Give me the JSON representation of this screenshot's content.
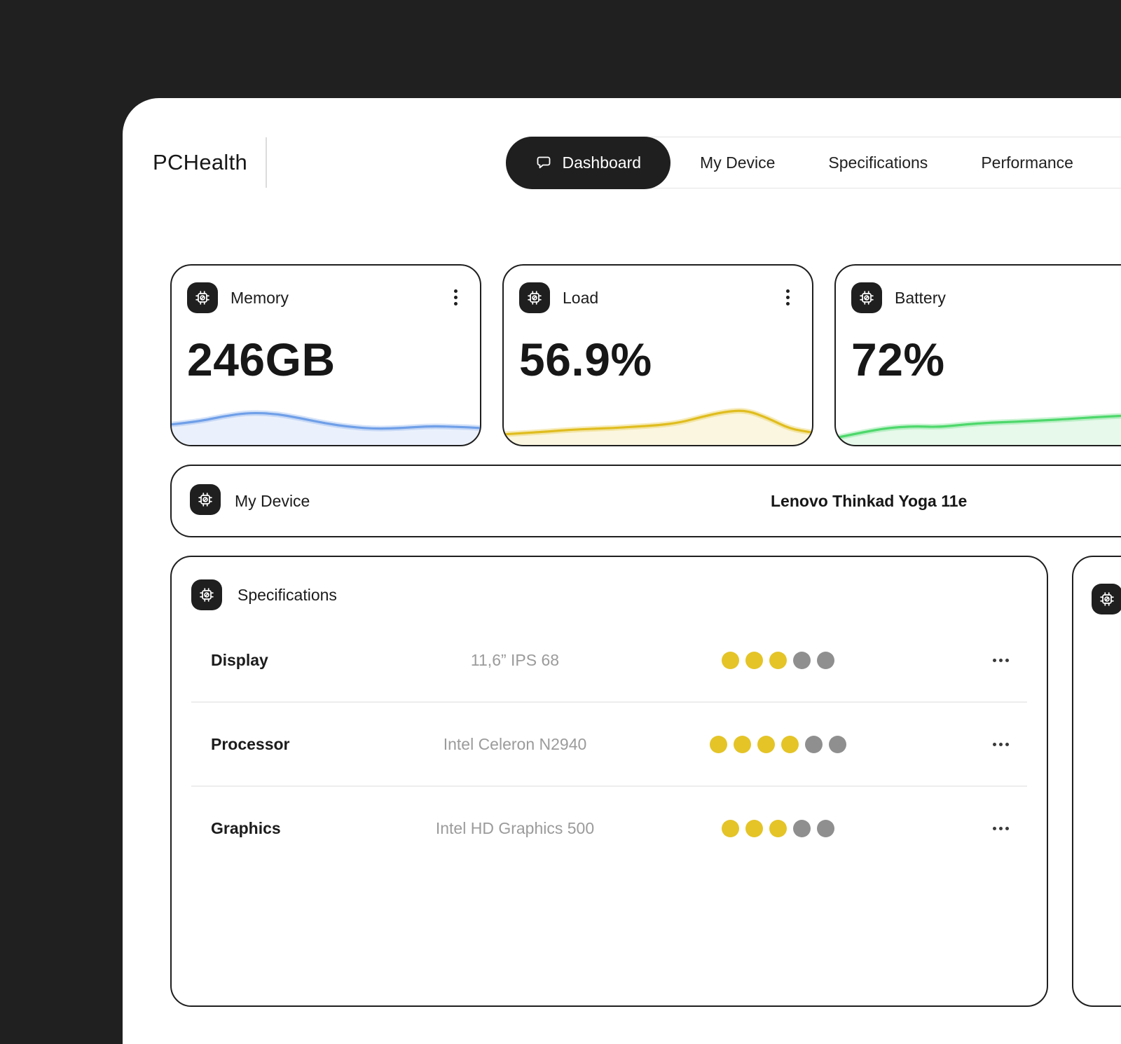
{
  "app": {
    "name": "PCHealth"
  },
  "nav": {
    "items": [
      {
        "label": "Dashboard",
        "active": true
      },
      {
        "label": "My Device",
        "active": false
      },
      {
        "label": "Specifications",
        "active": false
      },
      {
        "label": "Performance",
        "active": false
      }
    ]
  },
  "stats": [
    {
      "label": "Memory",
      "value": "246GB",
      "color": "#6f9fe8",
      "spark": [
        38,
        44,
        56,
        64,
        62,
        52,
        40,
        32,
        28,
        30,
        34,
        33,
        30
      ]
    },
    {
      "label": "Load",
      "value": "56.9%",
      "color": "#e0bd1f",
      "spark": [
        16,
        19,
        22,
        26,
        28,
        30,
        33,
        36,
        42,
        55,
        66,
        70,
        52,
        28,
        20
      ]
    },
    {
      "label": "Battery",
      "value": "72%",
      "color": "#4ed86c",
      "spark": [
        8,
        20,
        30,
        34,
        32,
        38,
        42,
        44,
        47,
        50,
        54,
        57,
        60,
        63
      ]
    }
  ],
  "device_bar": {
    "label": "My Device",
    "device_name": "Lenovo Thinkad Yoga 11e"
  },
  "specifications": {
    "title": "Specifications",
    "rows": [
      {
        "label": "Display",
        "value": "11,6” IPS 68",
        "rating": {
          "filled": 3,
          "total": 5
        }
      },
      {
        "label": "Processor",
        "value": "Intel Celeron N2940",
        "rating": {
          "filled": 4,
          "total": 6
        }
      },
      {
        "label": "Graphics",
        "value": "Intel HD Graphics 500",
        "rating": {
          "filled": 3,
          "total": 5
        }
      }
    ]
  },
  "colors": {
    "rating_filled": "#e4c427",
    "rating_empty": "#8f8f8f",
    "accent_blue": "#6f9fe8",
    "accent_yellow": "#e0bd1f",
    "accent_green": "#4ed86c",
    "card_border": "#1f1f1f",
    "background": "#202020"
  }
}
